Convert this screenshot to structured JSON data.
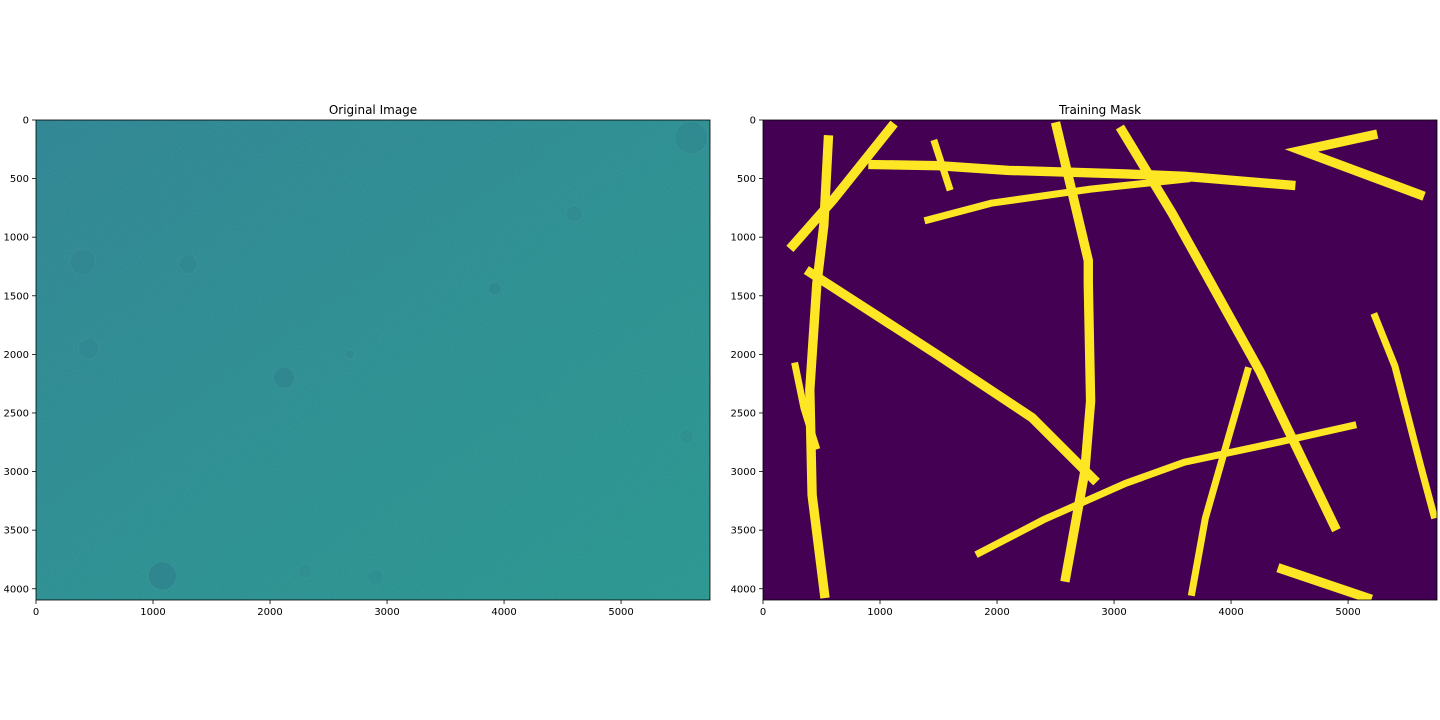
{
  "figure": {
    "colors": {
      "viridis_dark": "#440154",
      "viridis_yellow": "#fde725",
      "teal_base": "#2a8a8c"
    }
  },
  "chart_data": [
    {
      "type": "image",
      "title": "Original Image",
      "xlim": [
        0,
        5760
      ],
      "ylim": [
        4096,
        0
      ],
      "x_ticks": [
        0,
        1000,
        2000,
        3000,
        4000,
        5000
      ],
      "y_ticks": [
        0,
        500,
        1000,
        1500,
        2000,
        2500,
        3000,
        3500,
        4000
      ],
      "grid": false,
      "content": "microscopy grayscale field rendered with viridis colormap (near-uniform teal)"
    },
    {
      "type": "image",
      "title": "Training Mask",
      "xlim": [
        0,
        5760
      ],
      "ylim": [
        4096,
        0
      ],
      "x_ticks": [
        0,
        1000,
        2000,
        3000,
        4000,
        5000
      ],
      "y_ticks": [
        0,
        500,
        1000,
        1500,
        2000,
        2500,
        3000,
        3500,
        4000
      ],
      "grid": false,
      "background_value": 0,
      "foreground_value": 1,
      "strokes": [
        {
          "width": 80,
          "points": [
            [
              560,
              130
            ],
            [
              520,
              900
            ],
            [
              460,
              1400
            ],
            [
              400,
              2300
            ],
            [
              420,
              3200
            ],
            [
              530,
              4080
            ]
          ]
        },
        {
          "width": 80,
          "points": [
            [
              230,
              1100
            ],
            [
              600,
              680
            ],
            [
              1120,
              30
            ]
          ]
        },
        {
          "width": 80,
          "points": [
            [
              900,
              380
            ],
            [
              1500,
              390
            ],
            [
              2100,
              430
            ],
            [
              3100,
              460
            ],
            [
              3600,
              480
            ],
            [
              4550,
              560
            ]
          ]
        },
        {
          "width": 60,
          "points": [
            [
              1460,
              170
            ],
            [
              1600,
              600
            ]
          ]
        },
        {
          "width": 60,
          "points": [
            [
              1380,
              860
            ],
            [
              1950,
              710
            ],
            [
              2800,
              590
            ],
            [
              3650,
              500
            ]
          ]
        },
        {
          "width": 80,
          "points": [
            [
              2500,
              20
            ],
            [
              2780,
              1200
            ],
            [
              2780,
              1400
            ],
            [
              2800,
              2400
            ],
            [
              2750,
              3000
            ],
            [
              2580,
              3940
            ]
          ]
        },
        {
          "width": 80,
          "points": [
            [
              3050,
              60
            ],
            [
              3500,
              800
            ],
            [
              4250,
              2150
            ],
            [
              4900,
              3500
            ]
          ]
        },
        {
          "width": 60,
          "points": [
            [
              4150,
              2110
            ],
            [
              3880,
              3050
            ],
            [
              3780,
              3400
            ],
            [
              3660,
              4060
            ]
          ]
        },
        {
          "width": 60,
          "points": [
            [
              1820,
              3710
            ],
            [
              2400,
              3410
            ],
            [
              3100,
              3100
            ],
            [
              3600,
              2920
            ],
            [
              4400,
              2750
            ],
            [
              5070,
              2600
            ]
          ]
        },
        {
          "width": 80,
          "points": [
            [
              370,
              1280
            ],
            [
              1500,
              2010
            ],
            [
              2300,
              2540
            ],
            [
              2850,
              3090
            ]
          ]
        },
        {
          "width": 60,
          "points": [
            [
              270,
              2070
            ],
            [
              350,
              2460
            ],
            [
              460,
              2810
            ]
          ]
        },
        {
          "width": 80,
          "points": [
            [
              5250,
              120
            ],
            [
              4600,
              260
            ],
            [
              5650,
              650
            ]
          ]
        },
        {
          "width": 60,
          "points": [
            [
              5220,
              1650
            ],
            [
              5400,
              2100
            ],
            [
              5620,
              2950
            ],
            [
              5740,
              3400
            ]
          ]
        },
        {
          "width": 80,
          "points": [
            [
              4400,
              3820
            ],
            [
              5200,
              4090
            ]
          ]
        }
      ]
    }
  ]
}
